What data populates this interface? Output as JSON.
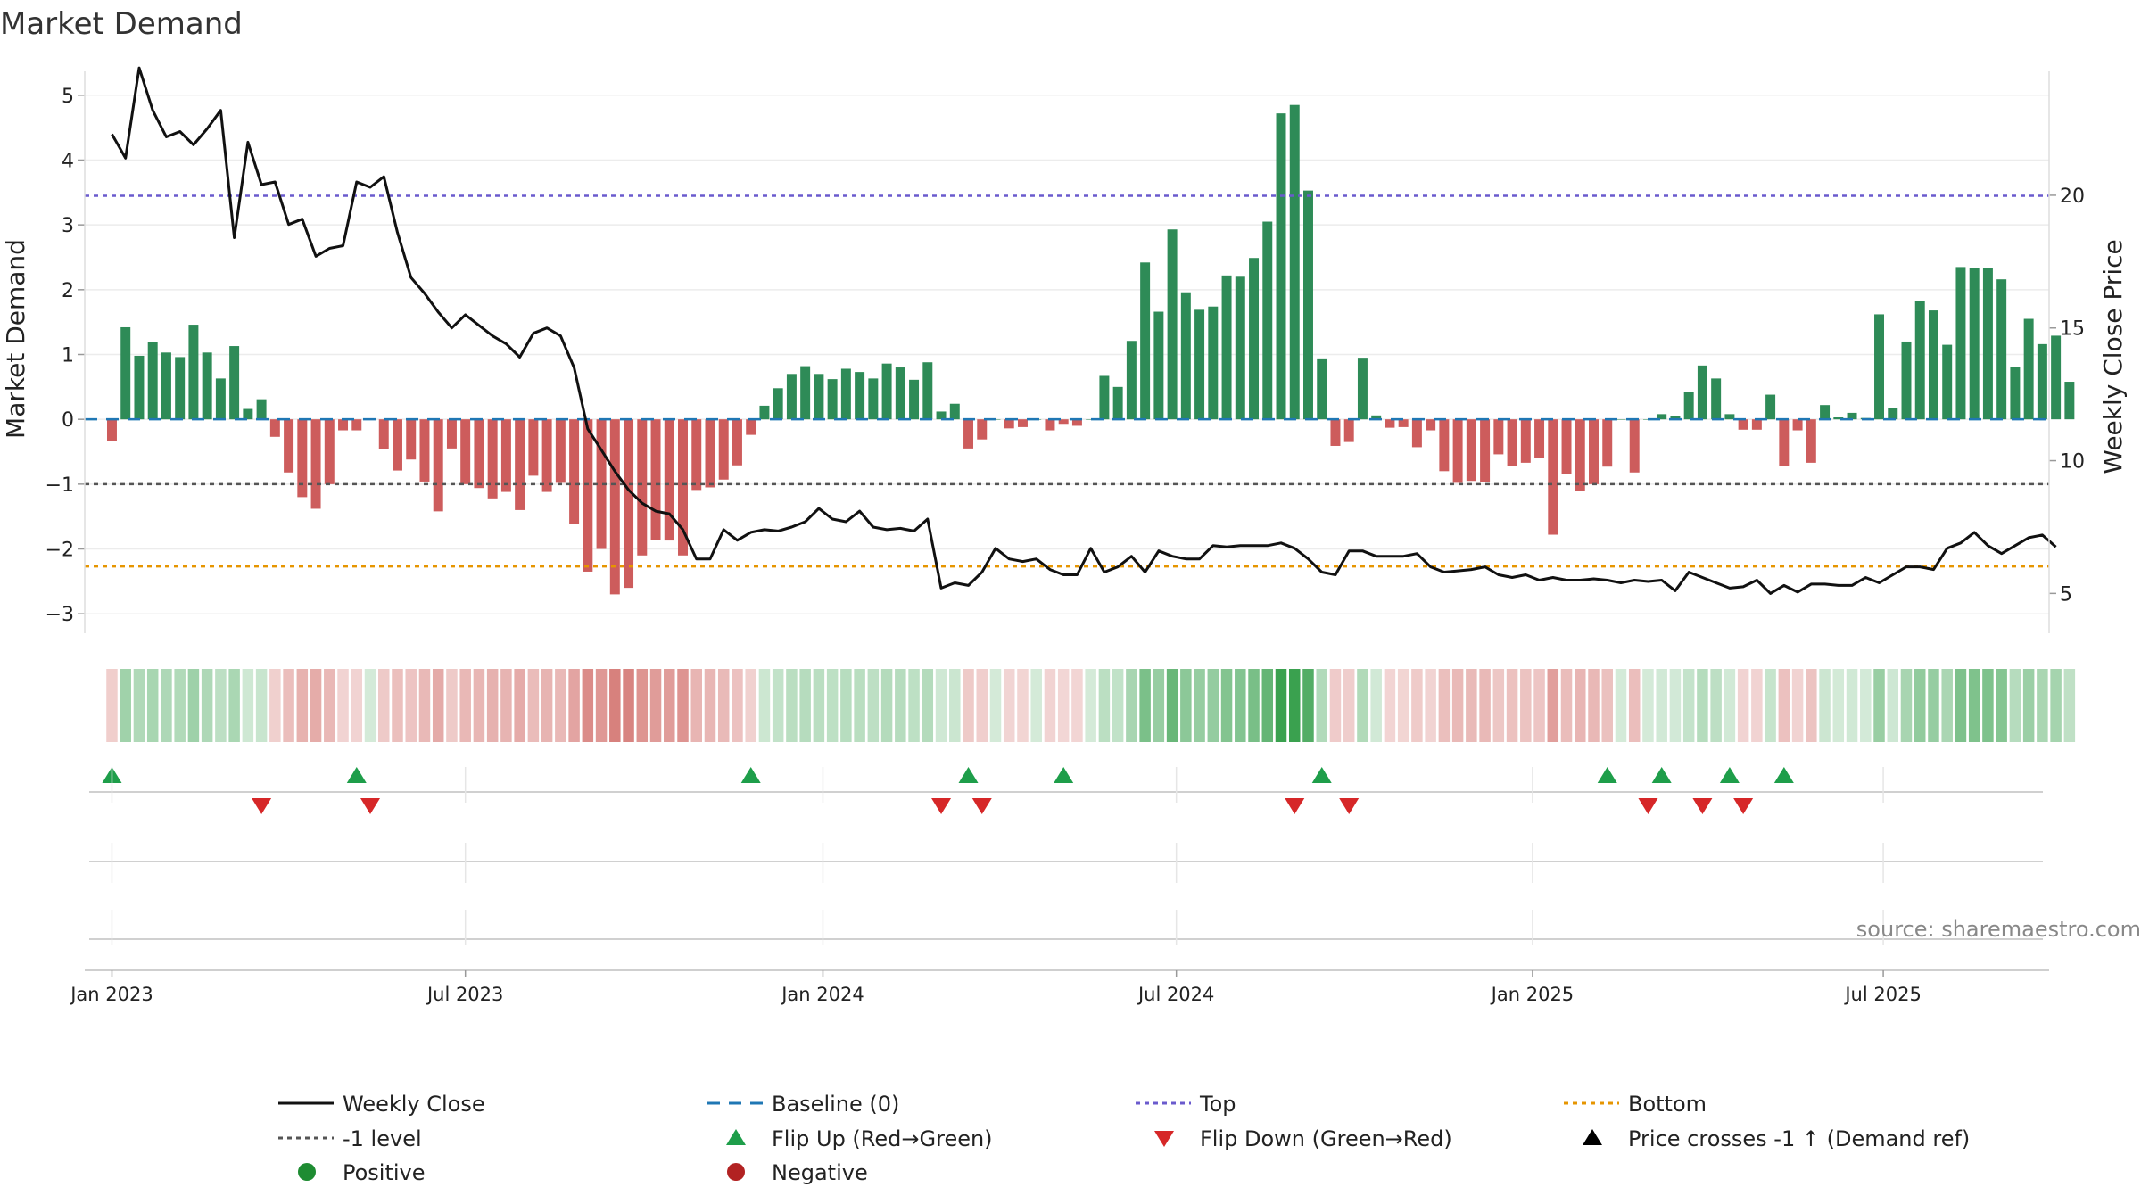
{
  "chart_data": {
    "type": "bar",
    "title": "Market Demand",
    "ylabel": "Market Demand",
    "y2label": "Weekly Close Price",
    "source": "source: sharemaestro.com",
    "ylim": [
      -3.3,
      5.3
    ],
    "y_ticks": [
      5,
      4,
      3,
      2,
      1,
      0,
      -1,
      -2,
      -3
    ],
    "y_tick_labels": [
      "5",
      "4",
      "3",
      "2",
      "1",
      "0",
      "−1",
      "−2",
      "−3"
    ],
    "y2lim": [
      3.5,
      24.5
    ],
    "y2_ticks": [
      20,
      15,
      10,
      5
    ],
    "y2_tick_labels": [
      "20",
      "15",
      "10",
      "5"
    ],
    "x_range_weeks": [
      -2,
      142.5
    ],
    "x_ticks": [
      {
        "week": 0,
        "label": "Jan 2023"
      },
      {
        "week": 26,
        "label": "Jul 2023"
      },
      {
        "week": 52.3,
        "label": "Jan 2024"
      },
      {
        "week": 78.3,
        "label": "Jul 2024"
      },
      {
        "week": 104.5,
        "label": "Jan 2025"
      },
      {
        "week": 130.3,
        "label": "Jul 2025"
      }
    ],
    "reference_lines": {
      "baseline": 0,
      "top": 3.45,
      "minus_one": -1,
      "bottom": -2.27
    },
    "series": [
      {
        "name": "Market Demand",
        "type": "bar",
        "values": [
          -0.33,
          1.42,
          0.98,
          1.19,
          1.03,
          0.96,
          1.46,
          1.03,
          0.63,
          1.13,
          0.16,
          0.31,
          -0.27,
          -0.82,
          -1.2,
          -1.38,
          -1.0,
          -0.17,
          -0.17,
          0.0,
          -0.46,
          -0.79,
          -0.62,
          -0.96,
          -1.42,
          -0.45,
          -1.0,
          -1.06,
          -1.22,
          -1.12,
          -1.4,
          -0.87,
          -1.12,
          -0.98,
          -1.61,
          -2.35,
          -2.0,
          -2.7,
          -2.6,
          -2.1,
          -1.86,
          -1.87,
          -2.1,
          -1.09,
          -1.05,
          -0.93,
          -0.71,
          -0.24,
          0.21,
          0.48,
          0.7,
          0.82,
          0.7,
          0.62,
          0.78,
          0.73,
          0.63,
          0.86,
          0.8,
          0.61,
          0.88,
          0.12,
          0.24,
          -0.45,
          -0.31,
          0.0,
          -0.14,
          -0.12,
          0.0,
          -0.17,
          -0.07,
          -0.1,
          0.0,
          0.67,
          0.5,
          1.21,
          2.42,
          1.66,
          2.93,
          1.96,
          1.69,
          1.74,
          2.22,
          2.2,
          2.49,
          3.05,
          4.72,
          4.85,
          3.53,
          0.94,
          -0.41,
          -0.35,
          0.95,
          0.06,
          -0.13,
          -0.12,
          -0.43,
          -0.17,
          -0.8,
          -0.98,
          -0.95,
          -0.97,
          -0.54,
          -0.72,
          -0.67,
          -0.59,
          -1.78,
          -0.85,
          -1.1,
          -1.0,
          -0.73,
          0.0,
          -0.82,
          0.0,
          0.08,
          0.05,
          0.42,
          0.83,
          0.63,
          0.08,
          -0.16,
          -0.16,
          0.38,
          -0.72,
          -0.17,
          -0.67,
          0.22,
          0.03,
          0.1,
          0.02,
          1.62,
          0.17,
          1.2,
          1.82,
          1.68,
          1.15,
          2.35,
          2.33,
          2.34,
          2.16,
          0.81,
          1.55,
          1.16,
          1.29,
          0.58
        ]
      },
      {
        "name": "Weekly Close",
        "type": "line",
        "values": [
          22.3,
          21.4,
          24.8,
          23.2,
          22.2,
          22.4,
          21.9,
          22.5,
          23.2,
          18.4,
          22.0,
          20.4,
          20.5,
          18.9,
          19.1,
          17.7,
          18.0,
          18.1,
          20.5,
          20.3,
          20.7,
          18.6,
          16.9,
          16.3,
          15.6,
          15.0,
          15.5,
          15.1,
          14.7,
          14.4,
          13.9,
          14.8,
          15.0,
          14.7,
          13.5,
          11.2,
          10.4,
          9.6,
          8.9,
          8.4,
          8.1,
          8.0,
          7.4,
          6.3,
          6.3,
          7.4,
          7.0,
          7.3,
          7.4,
          7.35,
          7.5,
          7.7,
          8.2,
          7.8,
          7.7,
          8.1,
          7.5,
          7.4,
          7.45,
          7.35,
          7.8,
          5.2,
          5.4,
          5.3,
          5.8,
          6.7,
          6.3,
          6.2,
          6.3,
          5.9,
          5.7,
          5.7,
          6.7,
          5.8,
          6.0,
          6.4,
          5.8,
          6.6,
          6.4,
          6.3,
          6.3,
          6.8,
          6.75,
          6.8,
          6.8,
          6.8,
          6.9,
          6.7,
          6.3,
          5.8,
          5.7,
          6.6,
          6.6,
          6.4,
          6.4,
          6.4,
          6.5,
          6.0,
          5.8,
          5.85,
          5.9,
          6.0,
          5.7,
          5.6,
          5.7,
          5.5,
          5.6,
          5.5,
          5.5,
          5.55,
          5.5,
          5.4,
          5.5,
          5.45,
          5.5,
          5.1,
          5.8,
          5.6,
          5.4,
          5.2,
          5.25,
          5.5,
          5.0,
          5.3,
          5.05,
          5.35,
          5.35,
          5.3,
          5.3,
          5.6,
          5.4,
          5.7,
          6.0,
          6.0,
          5.9,
          6.7,
          6.9,
          7.3,
          6.8,
          6.5,
          6.8,
          7.1,
          7.2,
          6.75
        ]
      }
    ],
    "flip_up_weeks": [
      0,
      18,
      47,
      63,
      70,
      89,
      110,
      114,
      119,
      123
    ],
    "flip_down_weeks": [
      11,
      19,
      61,
      64,
      87,
      91,
      113,
      117,
      120
    ],
    "legend": [
      {
        "label": "Weekly Close",
        "kind": "line-solid",
        "color": "#111111"
      },
      {
        "label": "Baseline (0)",
        "kind": "line-dash",
        "color": "#1f77b4"
      },
      {
        "label": "Top",
        "kind": "line-dot",
        "color": "#6a5acd"
      },
      {
        "label": "Bottom",
        "kind": "line-dot",
        "color": "#e69500"
      },
      {
        "label": "-1 level",
        "kind": "line-dot",
        "color": "#555555"
      },
      {
        "label": "Flip Up (Red→Green)",
        "kind": "tri-up",
        "color": "#1e9e4a"
      },
      {
        "label": "Flip Down (Green→Red)",
        "kind": "tri-down",
        "color": "#d62728"
      },
      {
        "label": "Price crosses -1 ↑ (Demand ref)",
        "kind": "tri-up",
        "color": "#000000"
      },
      {
        "label": "Positive",
        "kind": "dot",
        "color": "#1e8c32"
      },
      {
        "label": "Negative",
        "kind": "dot",
        "color": "#b22222"
      }
    ],
    "colors": {
      "positive_bar": "#2e8b57",
      "negative_bar": "#cd5c5c",
      "heat_positive": "#3aa14f",
      "heat_negative": "#c8504b",
      "flip_up": "#1e9e4a",
      "flip_down": "#d62728",
      "price_line": "#111111",
      "baseline": "#1f77b4",
      "top_line": "#6a5acd",
      "bottom_line": "#e69500",
      "minus_one_line": "#555555"
    }
  }
}
